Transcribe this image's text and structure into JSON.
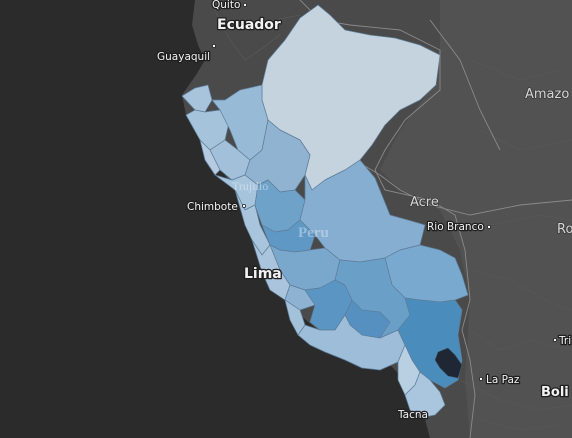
{
  "map": {
    "colors": {
      "ocean": "#2b2b2b",
      "land": "#4a4a4a",
      "scale_light": "#cbd8e3",
      "scale_mid": "#8fb3d1",
      "scale_dark": "#4a8dbd",
      "highlight": "#1e2733"
    },
    "labels": {
      "quito": "Quito",
      "ecuador": "Ecuador",
      "guayaquil": "Guayaquil",
      "amazonas": "Amazo",
      "chimbote": "Chimbote",
      "trujillo": "Trujillo",
      "acre": "Acre",
      "rio_branco": "Rio Branco",
      "ro": "Ro",
      "peru": "Peru",
      "lima": "Lima",
      "la_paz": "La Paz",
      "tri": "Tri",
      "bolivia": "Boli",
      "tacna": "Tacna"
    }
  }
}
